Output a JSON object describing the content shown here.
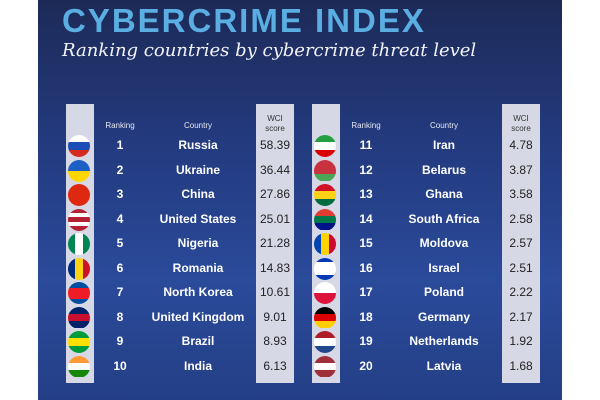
{
  "title": "CYBERCRIME INDEX",
  "subtitle": "Ranking countries by cybercrime threat level",
  "colors": {
    "title": "#5aaee2",
    "background": "#233a7e",
    "column_bg": "#d7d8e6"
  },
  "headers": {
    "ranking": "Ranking",
    "country": "Country",
    "score_line1": "WCI",
    "score_line2": "score"
  },
  "chart_data": {
    "type": "table",
    "title": "CYBERCRIME INDEX",
    "columns": [
      "Ranking",
      "Country",
      "WCI score"
    ],
    "rows": [
      {
        "rank": "1",
        "country": "Russia",
        "score": "58.39",
        "flag": "russia-flag-icon",
        "stripes": [
          "#ffffff",
          "#1c4fb5",
          "#d52b1e"
        ],
        "dir": "h"
      },
      {
        "rank": "2",
        "country": "Ukraine",
        "score": "36.44",
        "flag": "ukraine-flag-icon",
        "stripes": [
          "#1d5fc4",
          "#ffd500"
        ],
        "dir": "h"
      },
      {
        "rank": "3",
        "country": "China",
        "score": "27.86",
        "flag": "china-flag-icon",
        "stripes": [
          "#de2910"
        ],
        "dir": "h"
      },
      {
        "rank": "4",
        "country": "United States",
        "score": "25.01",
        "flag": "usa-flag-icon",
        "stripes": [
          "#b22234",
          "#ffffff",
          "#b22234",
          "#ffffff",
          "#b22234"
        ],
        "dir": "h"
      },
      {
        "rank": "5",
        "country": "Nigeria",
        "score": "21.28",
        "flag": "nigeria-flag-icon",
        "stripes": [
          "#008751",
          "#ffffff",
          "#008751"
        ],
        "dir": "v"
      },
      {
        "rank": "6",
        "country": "Romania",
        "score": "14.83",
        "flag": "romania-flag-icon",
        "stripes": [
          "#002b7f",
          "#fcd116",
          "#ce1126"
        ],
        "dir": "v"
      },
      {
        "rank": "7",
        "country": "North Korea",
        "score": "10.61",
        "flag": "north-korea-flag-icon",
        "stripes": [
          "#024fa2",
          "#ed1c27",
          "#ed1c27",
          "#024fa2"
        ],
        "dir": "h"
      },
      {
        "rank": "8",
        "country": "United Kingdom",
        "score": "9.01",
        "flag": "uk-flag-icon",
        "stripes": [
          "#012169",
          "#c8102e",
          "#012169"
        ],
        "dir": "h"
      },
      {
        "rank": "9",
        "country": "Brazil",
        "score": "8.93",
        "flag": "brazil-flag-icon",
        "stripes": [
          "#009c3b",
          "#ffdf00",
          "#009c3b"
        ],
        "dir": "h"
      },
      {
        "rank": "10",
        "country": "India",
        "score": "6.13",
        "flag": "india-flag-icon",
        "stripes": [
          "#ff9933",
          "#ffffff",
          "#138808"
        ],
        "dir": "h"
      },
      {
        "rank": "11",
        "country": "Iran",
        "score": "4.78",
        "flag": "iran-flag-icon",
        "stripes": [
          "#239f40",
          "#ffffff",
          "#da0000"
        ],
        "dir": "h"
      },
      {
        "rank": "12",
        "country": "Belarus",
        "score": "3.87",
        "flag": "belarus-flag-icon",
        "stripes": [
          "#c8313e",
          "#c8313e",
          "#4aa657"
        ],
        "dir": "h"
      },
      {
        "rank": "13",
        "country": "Ghana",
        "score": "3.58",
        "flag": "ghana-flag-icon",
        "stripes": [
          "#ce1126",
          "#fcd116",
          "#006b3f"
        ],
        "dir": "h"
      },
      {
        "rank": "14",
        "country": "South Africa",
        "score": "2.58",
        "flag": "south-africa-flag-icon",
        "stripes": [
          "#e03c31",
          "#007749",
          "#001489"
        ],
        "dir": "h"
      },
      {
        "rank": "15",
        "country": "Moldova",
        "score": "2.57",
        "flag": "moldova-flag-icon",
        "stripes": [
          "#0046ae",
          "#ffd200",
          "#cc092f"
        ],
        "dir": "v"
      },
      {
        "rank": "16",
        "country": "Israel",
        "score": "2.51",
        "flag": "israel-flag-icon",
        "stripes": [
          "#0038b8",
          "#ffffff",
          "#ffffff",
          "#ffffff",
          "#0038b8"
        ],
        "dir": "h"
      },
      {
        "rank": "17",
        "country": "Poland",
        "score": "2.22",
        "flag": "poland-flag-icon",
        "stripes": [
          "#ffffff",
          "#dc143c"
        ],
        "dir": "h"
      },
      {
        "rank": "18",
        "country": "Germany",
        "score": "2.17",
        "flag": "germany-flag-icon",
        "stripes": [
          "#000000",
          "#dd0000",
          "#ffce00"
        ],
        "dir": "h"
      },
      {
        "rank": "19",
        "country": "Netherlands",
        "score": "1.92",
        "flag": "netherlands-flag-icon",
        "stripes": [
          "#ae1c28",
          "#ffffff",
          "#21468b"
        ],
        "dir": "h"
      },
      {
        "rank": "20",
        "country": "Latvia",
        "score": "1.68",
        "flag": "latvia-flag-icon",
        "stripes": [
          "#9e3039",
          "#ffffff",
          "#9e3039"
        ],
        "dir": "h"
      }
    ]
  }
}
